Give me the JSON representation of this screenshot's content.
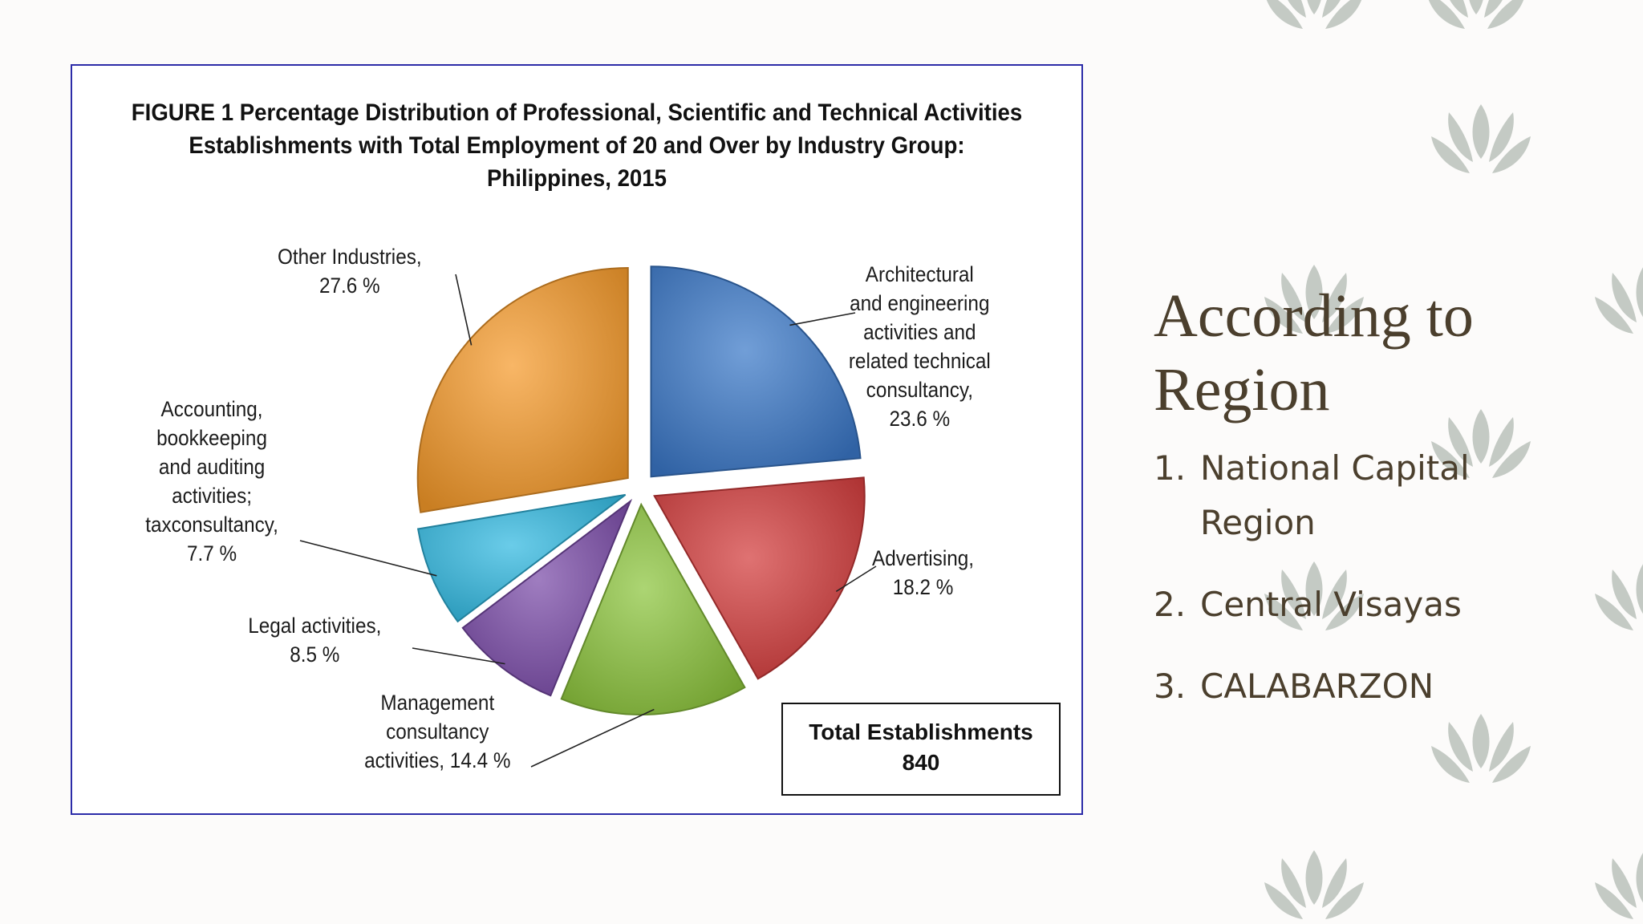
{
  "figure": {
    "title_lines": [
      "FIGURE 1 Percentage Distribution of Professional, Scientific and Technical Activities",
      "Establishments with Total Employment of 20 and Over by Industry Group:",
      "Philippines, 2015"
    ],
    "total_label": "Total Establishments",
    "total_value": "840"
  },
  "chart_data": {
    "type": "pie",
    "title": "FIGURE 1 Percentage Distribution of Professional, Scientific and Technical Activities Establishments with Total Employment of 20 and Over by Industry Group: Philippines, 2015",
    "slices": [
      {
        "label": "Architectural and engineering activities and related technical consultancy",
        "value": 23.6,
        "color": "#3a78c8"
      },
      {
        "label": "Advertising",
        "value": 18.2,
        "color": "#d23b3b"
      },
      {
        "label": "Management consultancy activities",
        "value": 14.4,
        "color": "#8cc43c"
      },
      {
        "label": "Legal activities",
        "value": 8.5,
        "color": "#7a4aa8"
      },
      {
        "label": "Accounting, bookkeeping and auditing activities; taxconsultancy",
        "value": 7.7,
        "color": "#30b8e0"
      },
      {
        "label": "Other Industries",
        "value": 27.6,
        "color": "#f59a2a"
      }
    ],
    "label_text": [
      [
        "Architectural",
        "and engineering",
        "activities and",
        "related technical",
        "consultancy,",
        "23.6 %"
      ],
      [
        "Advertising,",
        "18.2 %"
      ],
      [
        "Management",
        "consultancy",
        "activities, 14.4 %"
      ],
      [
        "Legal activities,",
        "8.5 %"
      ],
      [
        "Accounting,",
        "bookkeeping",
        "and auditing",
        "activities;",
        "taxconsultancy,",
        "7.7 %"
      ],
      [
        "Other Industries,",
        "27.6 %"
      ]
    ]
  },
  "side": {
    "title": "According to Region",
    "items": [
      {
        "num": "1.",
        "text": "National Capital Region"
      },
      {
        "num": "2.",
        "text": "Central Visayas"
      },
      {
        "num": "3.",
        "text": "CALABARZON"
      }
    ]
  },
  "colors": {
    "accent_text": "#4b3f2d",
    "leaf": "#c4cac4",
    "frame": "#2c2ca8"
  }
}
